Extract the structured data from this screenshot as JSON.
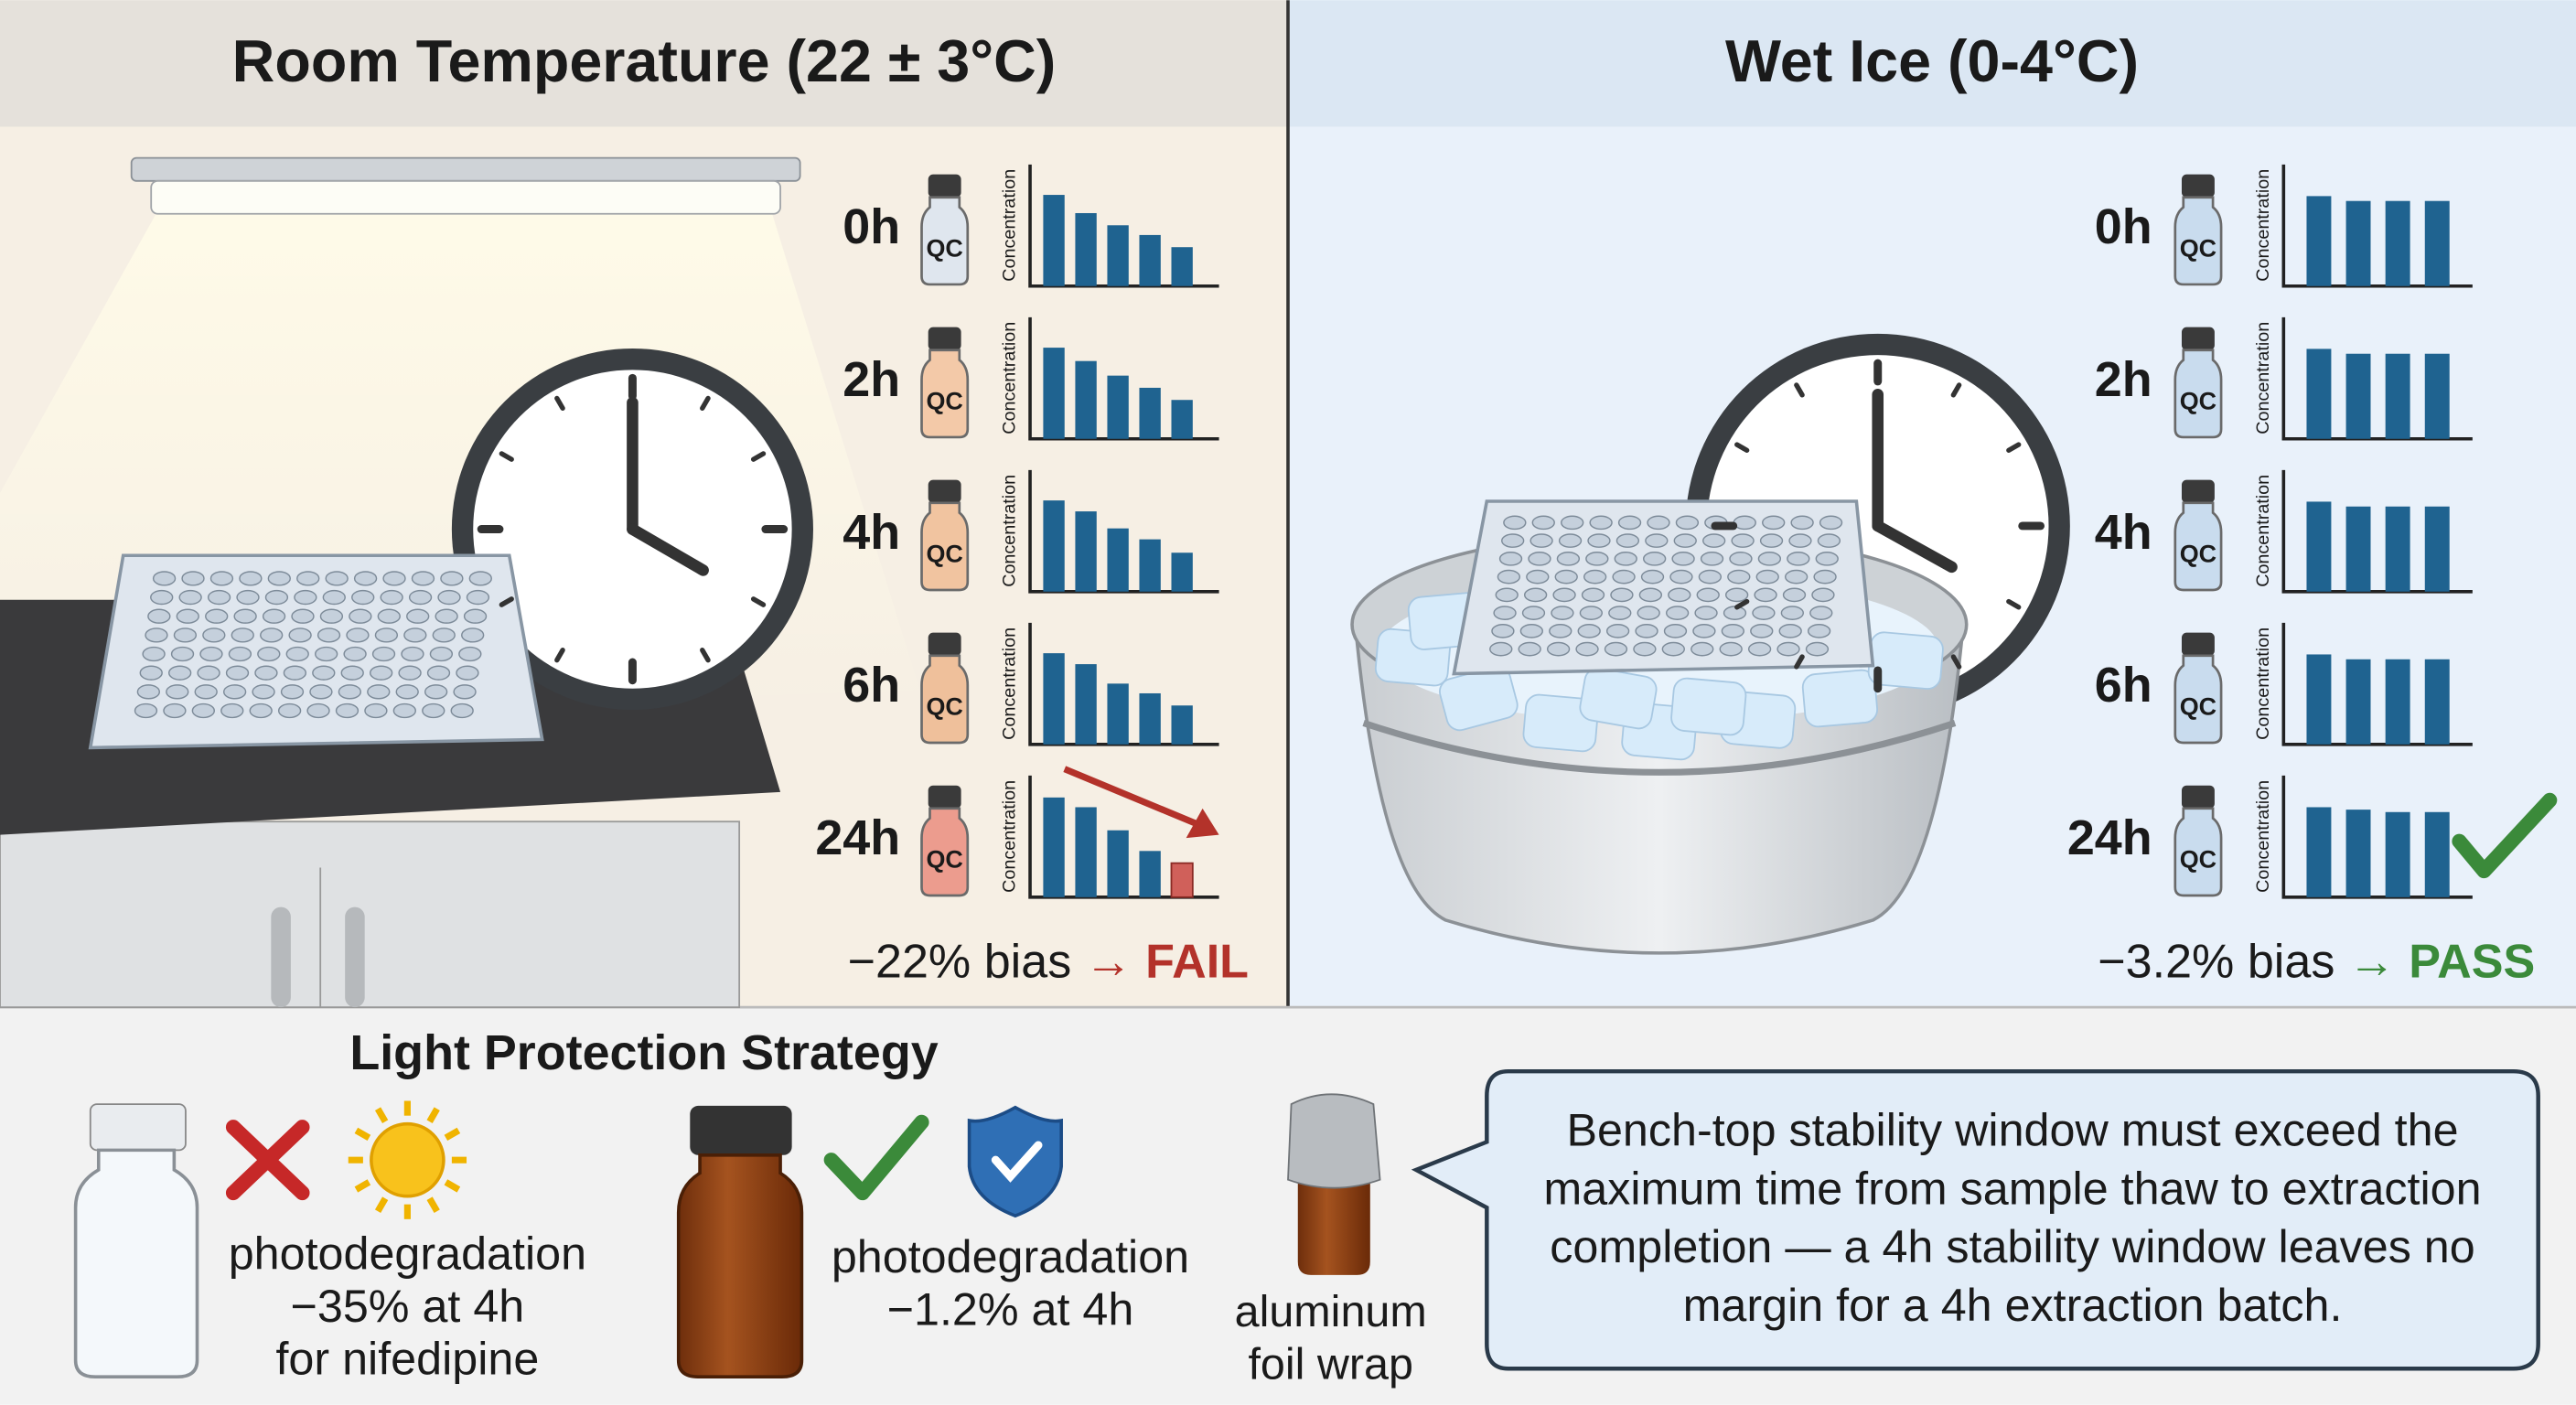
{
  "panels": [
    {
      "title": "Room Temperature (22 ± 3°C)",
      "vial_label": "QC",
      "axis_label": "Concentration",
      "ylim": [
        0,
        100
      ],
      "timepoints": [
        {
          "label": "0h",
          "bars": [
            75,
            60,
            50,
            42,
            32
          ]
        },
        {
          "label": "2h",
          "bars": [
            75,
            64,
            52,
            42,
            32
          ]
        },
        {
          "label": "4h",
          "bars": [
            75,
            66,
            52,
            43,
            32
          ]
        },
        {
          "label": "6h",
          "bars": [
            75,
            66,
            50,
            42,
            32
          ]
        },
        {
          "label": "24h",
          "bars": [
            82,
            74,
            55,
            38,
            28
          ]
        }
      ],
      "bias": "−22% bias",
      "result": "→ FAIL"
    },
    {
      "title": "Wet Ice (0-4°C)",
      "vial_label": "QC",
      "axis_label": "Concentration",
      "ylim": [
        0,
        100
      ],
      "timepoints": [
        {
          "label": "0h",
          "bars": [
            74,
            70,
            70,
            70
          ]
        },
        {
          "label": "2h",
          "bars": [
            74,
            70,
            70,
            70
          ]
        },
        {
          "label": "4h",
          "bars": [
            74,
            70,
            70,
            70
          ]
        },
        {
          "label": "6h",
          "bars": [
            74,
            70,
            70,
            70
          ]
        },
        {
          "label": "24h",
          "bars": [
            74,
            72,
            70,
            70
          ]
        }
      ],
      "bias": "−3.2% bias",
      "result": "→ PASS"
    }
  ],
  "light": {
    "title": "Light Protection Strategy",
    "items": [
      {
        "lines": [
          "photodegradation",
          "−35% at 4h",
          "for nifedipine"
        ]
      },
      {
        "lines": [
          "photodegradation",
          "−1.2% at 4h"
        ]
      },
      {
        "lines": [
          "aluminum",
          "foil wrap"
        ]
      }
    ]
  },
  "callout": {
    "lines": [
      "Bench-top stability window must exceed the",
      "maximum time from sample thaw to extraction",
      "completion — a 4h stability window leaves no",
      "margin for a 4h extraction batch."
    ]
  }
}
